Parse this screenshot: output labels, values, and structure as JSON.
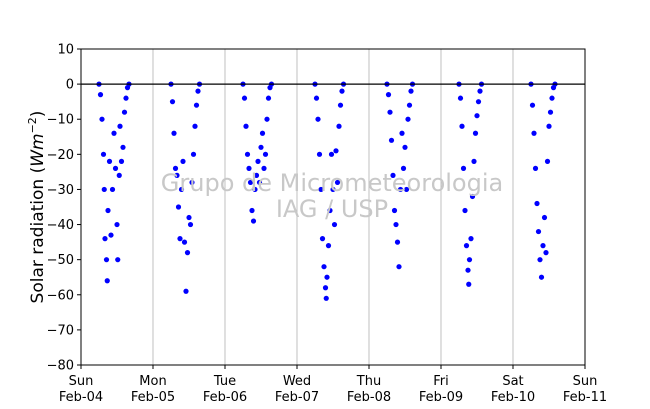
{
  "chart_data": {
    "type": "scatter",
    "title": "",
    "xlabel": "",
    "ylabel": "Solar radiation",
    "ylabel_unit_base": "Wm",
    "ylabel_unit_exp": "−2",
    "ylim": [
      -80,
      10
    ],
    "yticks": [
      10,
      0,
      -10,
      -20,
      -30,
      -40,
      -50,
      -60,
      -70,
      -80
    ],
    "xlim": [
      "2018-02-04",
      "2018-02-11"
    ],
    "xticks": [
      {
        "date": "2018-02-04",
        "day": "Sun",
        "label": "Feb-04"
      },
      {
        "date": "2018-02-05",
        "day": "Mon",
        "label": "Feb-05"
      },
      {
        "date": "2018-02-06",
        "day": "Tue",
        "label": "Feb-06"
      },
      {
        "date": "2018-02-07",
        "day": "Wed",
        "label": "Feb-07"
      },
      {
        "date": "2018-02-08",
        "day": "Thu",
        "label": "Feb-08"
      },
      {
        "date": "2018-02-09",
        "day": "Fri",
        "label": "Feb-09"
      },
      {
        "date": "2018-02-10",
        "day": "Sat",
        "label": "Feb-10"
      },
      {
        "date": "2018-02-11",
        "day": "Sun",
        "label": "Feb-11"
      }
    ],
    "grid": "vertical",
    "zero_line": 0,
    "marker_color": "#0000ff",
    "series": [
      {
        "points": [
          [
            "2018-02-04 06:00",
            0
          ],
          [
            "2018-02-04 06:30",
            -3
          ],
          [
            "2018-02-04 07:00",
            -10
          ],
          [
            "2018-02-04 07:30",
            -20
          ],
          [
            "2018-02-04 07:45",
            -30
          ],
          [
            "2018-02-04 08:00",
            -44
          ],
          [
            "2018-02-04 08:30",
            -50
          ],
          [
            "2018-02-04 08:45",
            -56
          ],
          [
            "2018-02-04 09:00",
            -36
          ],
          [
            "2018-02-04 09:30",
            -22
          ],
          [
            "2018-02-04 10:00",
            -43
          ],
          [
            "2018-02-04 10:30",
            -30
          ],
          [
            "2018-02-04 11:00",
            -14
          ],
          [
            "2018-02-04 11:30",
            -24
          ],
          [
            "2018-02-04 12:00",
            -40
          ],
          [
            "2018-02-04 12:15",
            -50
          ],
          [
            "2018-02-04 12:45",
            -26
          ],
          [
            "2018-02-04 13:00",
            -12
          ],
          [
            "2018-02-04 13:30",
            -22
          ],
          [
            "2018-02-04 14:00",
            -18
          ],
          [
            "2018-02-04 14:30",
            -8
          ],
          [
            "2018-02-04 15:00",
            -4
          ],
          [
            "2018-02-04 15:30",
            -1
          ],
          [
            "2018-02-04 16:00",
            0
          ],
          [
            "2018-02-05 06:00",
            0
          ],
          [
            "2018-02-05 06:30",
            -5
          ],
          [
            "2018-02-05 07:00",
            -14
          ],
          [
            "2018-02-05 07:30",
            -24
          ],
          [
            "2018-02-05 08:00",
            -26
          ],
          [
            "2018-02-05 08:30",
            -35
          ],
          [
            "2018-02-05 09:00",
            -44
          ],
          [
            "2018-02-05 09:30",
            -30
          ],
          [
            "2018-02-05 10:00",
            -22
          ],
          [
            "2018-02-05 10:30",
            -45
          ],
          [
            "2018-02-05 11:00",
            -59
          ],
          [
            "2018-02-05 11:30",
            -48
          ],
          [
            "2018-02-05 12:00",
            -38
          ],
          [
            "2018-02-05 12:30",
            -40
          ],
          [
            "2018-02-05 13:00",
            -28
          ],
          [
            "2018-02-05 13:30",
            -20
          ],
          [
            "2018-02-05 14:00",
            -12
          ],
          [
            "2018-02-05 14:30",
            -6
          ],
          [
            "2018-02-05 15:00",
            -2
          ],
          [
            "2018-02-05 15:30",
            0
          ],
          [
            "2018-02-06 06:00",
            0
          ],
          [
            "2018-02-06 06:30",
            -4
          ],
          [
            "2018-02-06 07:00",
            -12
          ],
          [
            "2018-02-06 07:30",
            -20
          ],
          [
            "2018-02-06 08:00",
            -24
          ],
          [
            "2018-02-06 08:30",
            -28
          ],
          [
            "2018-02-06 09:00",
            -36
          ],
          [
            "2018-02-06 09:30",
            -39
          ],
          [
            "2018-02-06 10:00",
            -30
          ],
          [
            "2018-02-06 10:30",
            -26
          ],
          [
            "2018-02-06 11:00",
            -22
          ],
          [
            "2018-02-06 11:30",
            -28
          ],
          [
            "2018-02-06 12:00",
            -18
          ],
          [
            "2018-02-06 12:30",
            -14
          ],
          [
            "2018-02-06 13:00",
            -24
          ],
          [
            "2018-02-06 13:30",
            -20
          ],
          [
            "2018-02-06 14:00",
            -10
          ],
          [
            "2018-02-06 14:30",
            -4
          ],
          [
            "2018-02-06 15:00",
            -1
          ],
          [
            "2018-02-06 15:30",
            0
          ],
          [
            "2018-02-07 06:00",
            0
          ],
          [
            "2018-02-07 06:30",
            -4
          ],
          [
            "2018-02-07 07:00",
            -10
          ],
          [
            "2018-02-07 07:30",
            -20
          ],
          [
            "2018-02-07 08:00",
            -30
          ],
          [
            "2018-02-07 08:30",
            -44
          ],
          [
            "2018-02-07 09:00",
            -52
          ],
          [
            "2018-02-07 09:30",
            -58
          ],
          [
            "2018-02-07 09:45",
            -61
          ],
          [
            "2018-02-07 10:00",
            -55
          ],
          [
            "2018-02-07 10:30",
            -46
          ],
          [
            "2018-02-07 11:00",
            -36
          ],
          [
            "2018-02-07 11:30",
            -20
          ],
          [
            "2018-02-07 12:00",
            -30
          ],
          [
            "2018-02-07 12:30",
            -40
          ],
          [
            "2018-02-07 13:00",
            -19
          ],
          [
            "2018-02-07 13:30",
            -28
          ],
          [
            "2018-02-07 14:00",
            -12
          ],
          [
            "2018-02-07 14:30",
            -6
          ],
          [
            "2018-02-07 15:00",
            -2
          ],
          [
            "2018-02-07 15:30",
            0
          ],
          [
            "2018-02-08 06:00",
            0
          ],
          [
            "2018-02-08 06:30",
            -3
          ],
          [
            "2018-02-08 07:00",
            -8
          ],
          [
            "2018-02-08 07:30",
            -16
          ],
          [
            "2018-02-08 08:00",
            -26
          ],
          [
            "2018-02-08 08:30",
            -36
          ],
          [
            "2018-02-08 09:00",
            -40
          ],
          [
            "2018-02-08 09:30",
            -45
          ],
          [
            "2018-02-08 10:00",
            -52
          ],
          [
            "2018-02-08 10:30",
            -30
          ],
          [
            "2018-02-08 11:00",
            -14
          ],
          [
            "2018-02-08 11:30",
            -24
          ],
          [
            "2018-02-08 12:00",
            -18
          ],
          [
            "2018-02-08 12:30",
            -30
          ],
          [
            "2018-02-08 13:00",
            -10
          ],
          [
            "2018-02-08 13:30",
            -6
          ],
          [
            "2018-02-08 14:00",
            -2
          ],
          [
            "2018-02-08 14:30",
            0
          ],
          [
            "2018-02-09 06:00",
            0
          ],
          [
            "2018-02-09 06:30",
            -4
          ],
          [
            "2018-02-09 07:00",
            -12
          ],
          [
            "2018-02-09 07:30",
            -24
          ],
          [
            "2018-02-09 08:00",
            -36
          ],
          [
            "2018-02-09 08:30",
            -46
          ],
          [
            "2018-02-09 09:00",
            -53
          ],
          [
            "2018-02-09 09:15",
            -57
          ],
          [
            "2018-02-09 09:30",
            -50
          ],
          [
            "2018-02-09 10:00",
            -44
          ],
          [
            "2018-02-09 10:30",
            -32
          ],
          [
            "2018-02-09 11:00",
            -22
          ],
          [
            "2018-02-09 11:30",
            -14
          ],
          [
            "2018-02-09 12:00",
            -9
          ],
          [
            "2018-02-09 12:30",
            -5
          ],
          [
            "2018-02-09 13:00",
            -2
          ],
          [
            "2018-02-09 13:30",
            0
          ],
          [
            "2018-02-10 06:00",
            0
          ],
          [
            "2018-02-10 06:30",
            -6
          ],
          [
            "2018-02-10 07:00",
            -14
          ],
          [
            "2018-02-10 07:30",
            -24
          ],
          [
            "2018-02-10 08:00",
            -34
          ],
          [
            "2018-02-10 08:30",
            -42
          ],
          [
            "2018-02-10 09:00",
            -50
          ],
          [
            "2018-02-10 09:30",
            -55
          ],
          [
            "2018-02-10 10:00",
            -46
          ],
          [
            "2018-02-10 10:30",
            -38
          ],
          [
            "2018-02-10 11:00",
            -48
          ],
          [
            "2018-02-10 11:30",
            -22
          ],
          [
            "2018-02-10 12:00",
            -12
          ],
          [
            "2018-02-10 12:30",
            -8
          ],
          [
            "2018-02-10 13:00",
            -4
          ],
          [
            "2018-02-10 13:30",
            -1
          ],
          [
            "2018-02-10 14:00",
            0
          ]
        ]
      }
    ]
  },
  "watermark": {
    "line1": "Grupo de Micrometeorologia",
    "line2": "IAG / USP"
  }
}
